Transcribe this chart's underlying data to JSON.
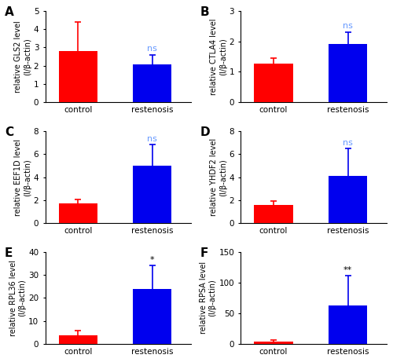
{
  "panels": [
    {
      "label": "A",
      "ylabel": "relative GLS2 level\n(I/β-actin)",
      "ylim": [
        0,
        5
      ],
      "yticks": [
        0,
        1,
        2,
        3,
        4,
        5
      ],
      "control_val": 2.78,
      "restenosis_val": 2.08,
      "control_err": 1.62,
      "restenosis_err": 0.52,
      "significance": "ns",
      "sig_color": "#6699FF"
    },
    {
      "label": "B",
      "ylabel": "relative CTLA4 level\n(I/β-actin)",
      "ylim": [
        0,
        3
      ],
      "yticks": [
        0,
        1,
        2,
        3
      ],
      "control_val": 1.28,
      "restenosis_val": 1.92,
      "control_err": 0.18,
      "restenosis_err": 0.38,
      "significance": "ns",
      "sig_color": "#6699FF"
    },
    {
      "label": "C",
      "ylabel": "relative EEF1D level\n(I/β-actin)",
      "ylim": [
        0,
        8
      ],
      "yticks": [
        0,
        2,
        4,
        6,
        8
      ],
      "control_val": 1.72,
      "restenosis_val": 5.0,
      "control_err": 0.35,
      "restenosis_err": 1.85,
      "significance": "ns",
      "sig_color": "#6699FF"
    },
    {
      "label": "D",
      "ylabel": "relative YHDF2 level\n(I/β-actin)",
      "ylim": [
        0,
        8
      ],
      "yticks": [
        0,
        2,
        4,
        6,
        8
      ],
      "control_val": 1.55,
      "restenosis_val": 4.1,
      "control_err": 0.35,
      "restenosis_err": 2.4,
      "significance": "ns",
      "sig_color": "#6699FF"
    },
    {
      "label": "E",
      "ylabel": "relative RPL36 level\n(I/β-actin)",
      "ylim": [
        0,
        40
      ],
      "yticks": [
        0,
        10,
        20,
        30,
        40
      ],
      "control_val": 3.8,
      "restenosis_val": 24.0,
      "control_err": 1.8,
      "restenosis_err": 10.0,
      "significance": "*",
      "sig_color": "#000000"
    },
    {
      "label": "F",
      "ylabel": "relative RPSA level\n(I/β-actin)",
      "ylim": [
        0,
        150
      ],
      "yticks": [
        0,
        50,
        100,
        150
      ],
      "control_val": 3.5,
      "restenosis_val": 63.0,
      "control_err": 2.5,
      "restenosis_err": 48.0,
      "significance": "**",
      "sig_color": "#000000"
    }
  ],
  "control_color": "#FF0000",
  "restenosis_color": "#0000EE",
  "bar_width": 0.65,
  "xlabel_control": "control",
  "xlabel_restenosis": "restenosis",
  "capsize": 3,
  "error_linewidth": 1.2,
  "background_color": "#FFFFFF",
  "tick_fontsize": 7.5,
  "label_fontsize": 7,
  "sig_fontsize": 8,
  "panel_label_fontsize": 11
}
